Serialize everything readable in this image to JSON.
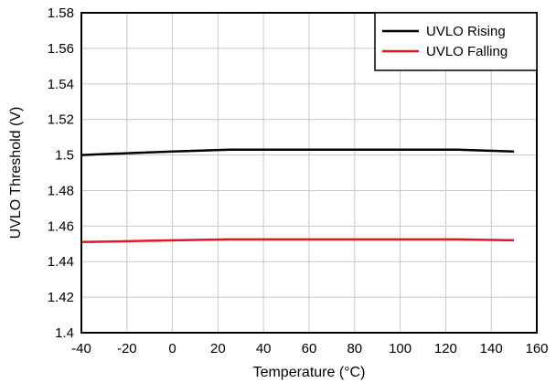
{
  "chart_data": {
    "type": "line",
    "xlabel": "Temperature (°C)",
    "ylabel": "UVLO Threshold (V)",
    "xlim": [
      -40,
      160
    ],
    "ylim": [
      1.4,
      1.58
    ],
    "xticks": [
      -40,
      -20,
      0,
      20,
      40,
      60,
      80,
      100,
      120,
      140,
      160
    ],
    "yticks": [
      1.4,
      1.42,
      1.44,
      1.46,
      1.48,
      1.5,
      1.52,
      1.54,
      1.56,
      1.58
    ],
    "xtick_labels": [
      "-40",
      "-20",
      "0",
      "20",
      "40",
      "60",
      "80",
      "100",
      "120",
      "140",
      "160"
    ],
    "ytick_labels": [
      "1.4",
      "1.42",
      "1.44",
      "1.46",
      "1.48",
      "1.5",
      "1.52",
      "1.54",
      "1.56",
      "1.58"
    ],
    "grid": true,
    "legend_position": "top-right",
    "series": [
      {
        "name": "UVLO Rising",
        "color": "#000000",
        "x": [
          -40,
          -20,
          0,
          25,
          50,
          75,
          100,
          125,
          150
        ],
        "y": [
          1.5,
          1.501,
          1.502,
          1.503,
          1.503,
          1.503,
          1.503,
          1.503,
          1.502
        ]
      },
      {
        "name": "UVLO Falling",
        "color": "#e8141e",
        "x": [
          -40,
          -20,
          0,
          25,
          50,
          75,
          100,
          125,
          150
        ],
        "y": [
          1.451,
          1.4515,
          1.452,
          1.4525,
          1.4525,
          1.4525,
          1.4525,
          1.4525,
          1.452
        ]
      }
    ]
  }
}
